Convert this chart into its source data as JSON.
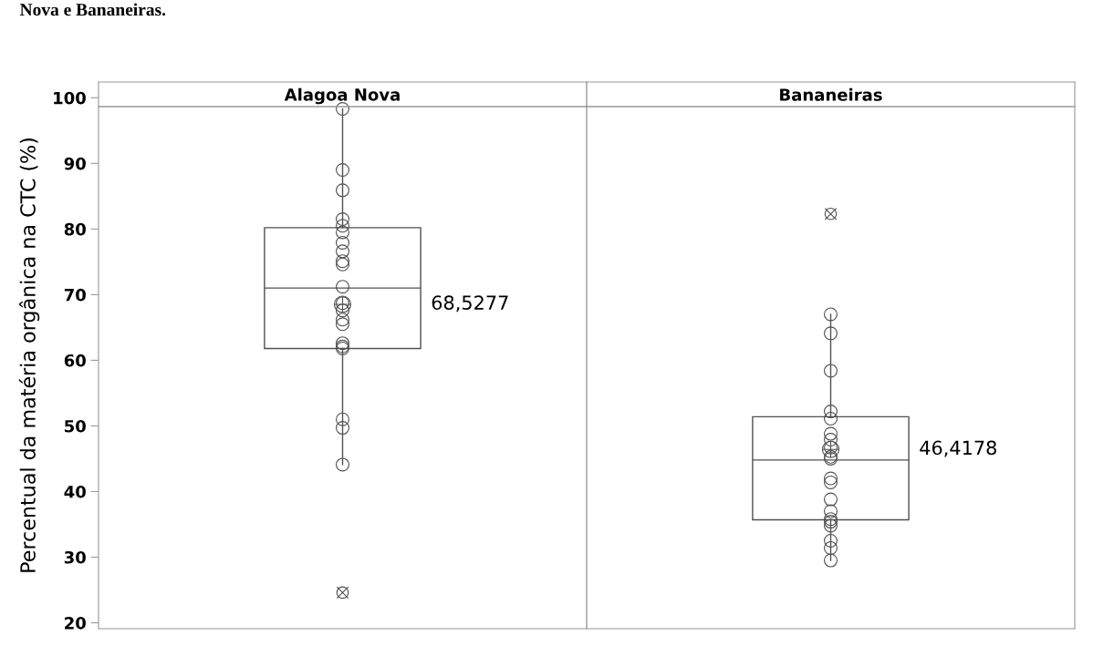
{
  "chart_data": {
    "type": "box",
    "categories": [
      "Alagoa Nova",
      "Bananeiras"
    ],
    "ylabel": "Percentual da matéria orgânica na CTC (%)",
    "ylim": [
      19.1,
      102.4
    ],
    "yticks": [
      20,
      30,
      40,
      50,
      60,
      70,
      80,
      90,
      100
    ],
    "boxes": [
      {
        "low": 44.1,
        "q1": 61.8,
        "median": 71.0,
        "q3": 80.2,
        "high": 98.3,
        "mean": 68.5277,
        "outliers": [
          24.6
        ]
      },
      {
        "low": 29.5,
        "q1": 35.7,
        "median": 44.8,
        "q3": 51.4,
        "high": 67.0,
        "mean": 46.4178,
        "outliers": [
          82.3
        ]
      }
    ],
    "series": [
      {
        "type": "scatter",
        "color": "#505050",
        "x": [
          "Alagoa Nova",
          "Alagoa Nova",
          "Alagoa Nova",
          "Alagoa Nova",
          "Alagoa Nova",
          "Alagoa Nova",
          "Alagoa Nova",
          "Alagoa Nova",
          "Alagoa Nova",
          "Alagoa Nova",
          "Alagoa Nova",
          "Alagoa Nova",
          "Alagoa Nova",
          "Alagoa Nova",
          "Alagoa Nova",
          "Alagoa Nova",
          "Alagoa Nova",
          "Alagoa Nova",
          "Alagoa Nova",
          "Alagoa Nova",
          "Alagoa Nova"
        ],
        "values": [
          98.3,
          89.0,
          85.9,
          81.5,
          80.5,
          79.5,
          77.9,
          76.6,
          75.1,
          74.6,
          71.2,
          68.7,
          67.6,
          66.2,
          65.5,
          62.6,
          62.1,
          61.8,
          51.0,
          49.7,
          44.1
        ]
      },
      {
        "type": "scatter",
        "color": "#505050",
        "x": [
          "Bananeiras",
          "Bananeiras",
          "Bananeiras",
          "Bananeiras",
          "Bananeiras",
          "Bananeiras",
          "Bananeiras",
          "Bananeiras",
          "Bananeiras",
          "Bananeiras",
          "Bananeiras",
          "Bananeiras",
          "Bananeiras",
          "Bananeiras",
          "Bananeiras",
          "Bananeiras",
          "Bananeiras",
          "Bananeiras",
          "Bananeiras",
          "Bananeiras"
        ],
        "values": [
          67.0,
          64.1,
          58.4,
          52.2,
          51.1,
          48.8,
          47.9,
          46.7,
          45.3,
          45.0,
          42.0,
          41.4,
          38.8,
          37.0,
          35.8,
          35.4,
          34.8,
          32.5,
          31.4,
          29.5
        ]
      }
    ],
    "marker": "circle",
    "grid": false,
    "annotations": [
      "Nova e Bananeiras.",
      "68,5277",
      "46,4178"
    ]
  }
}
